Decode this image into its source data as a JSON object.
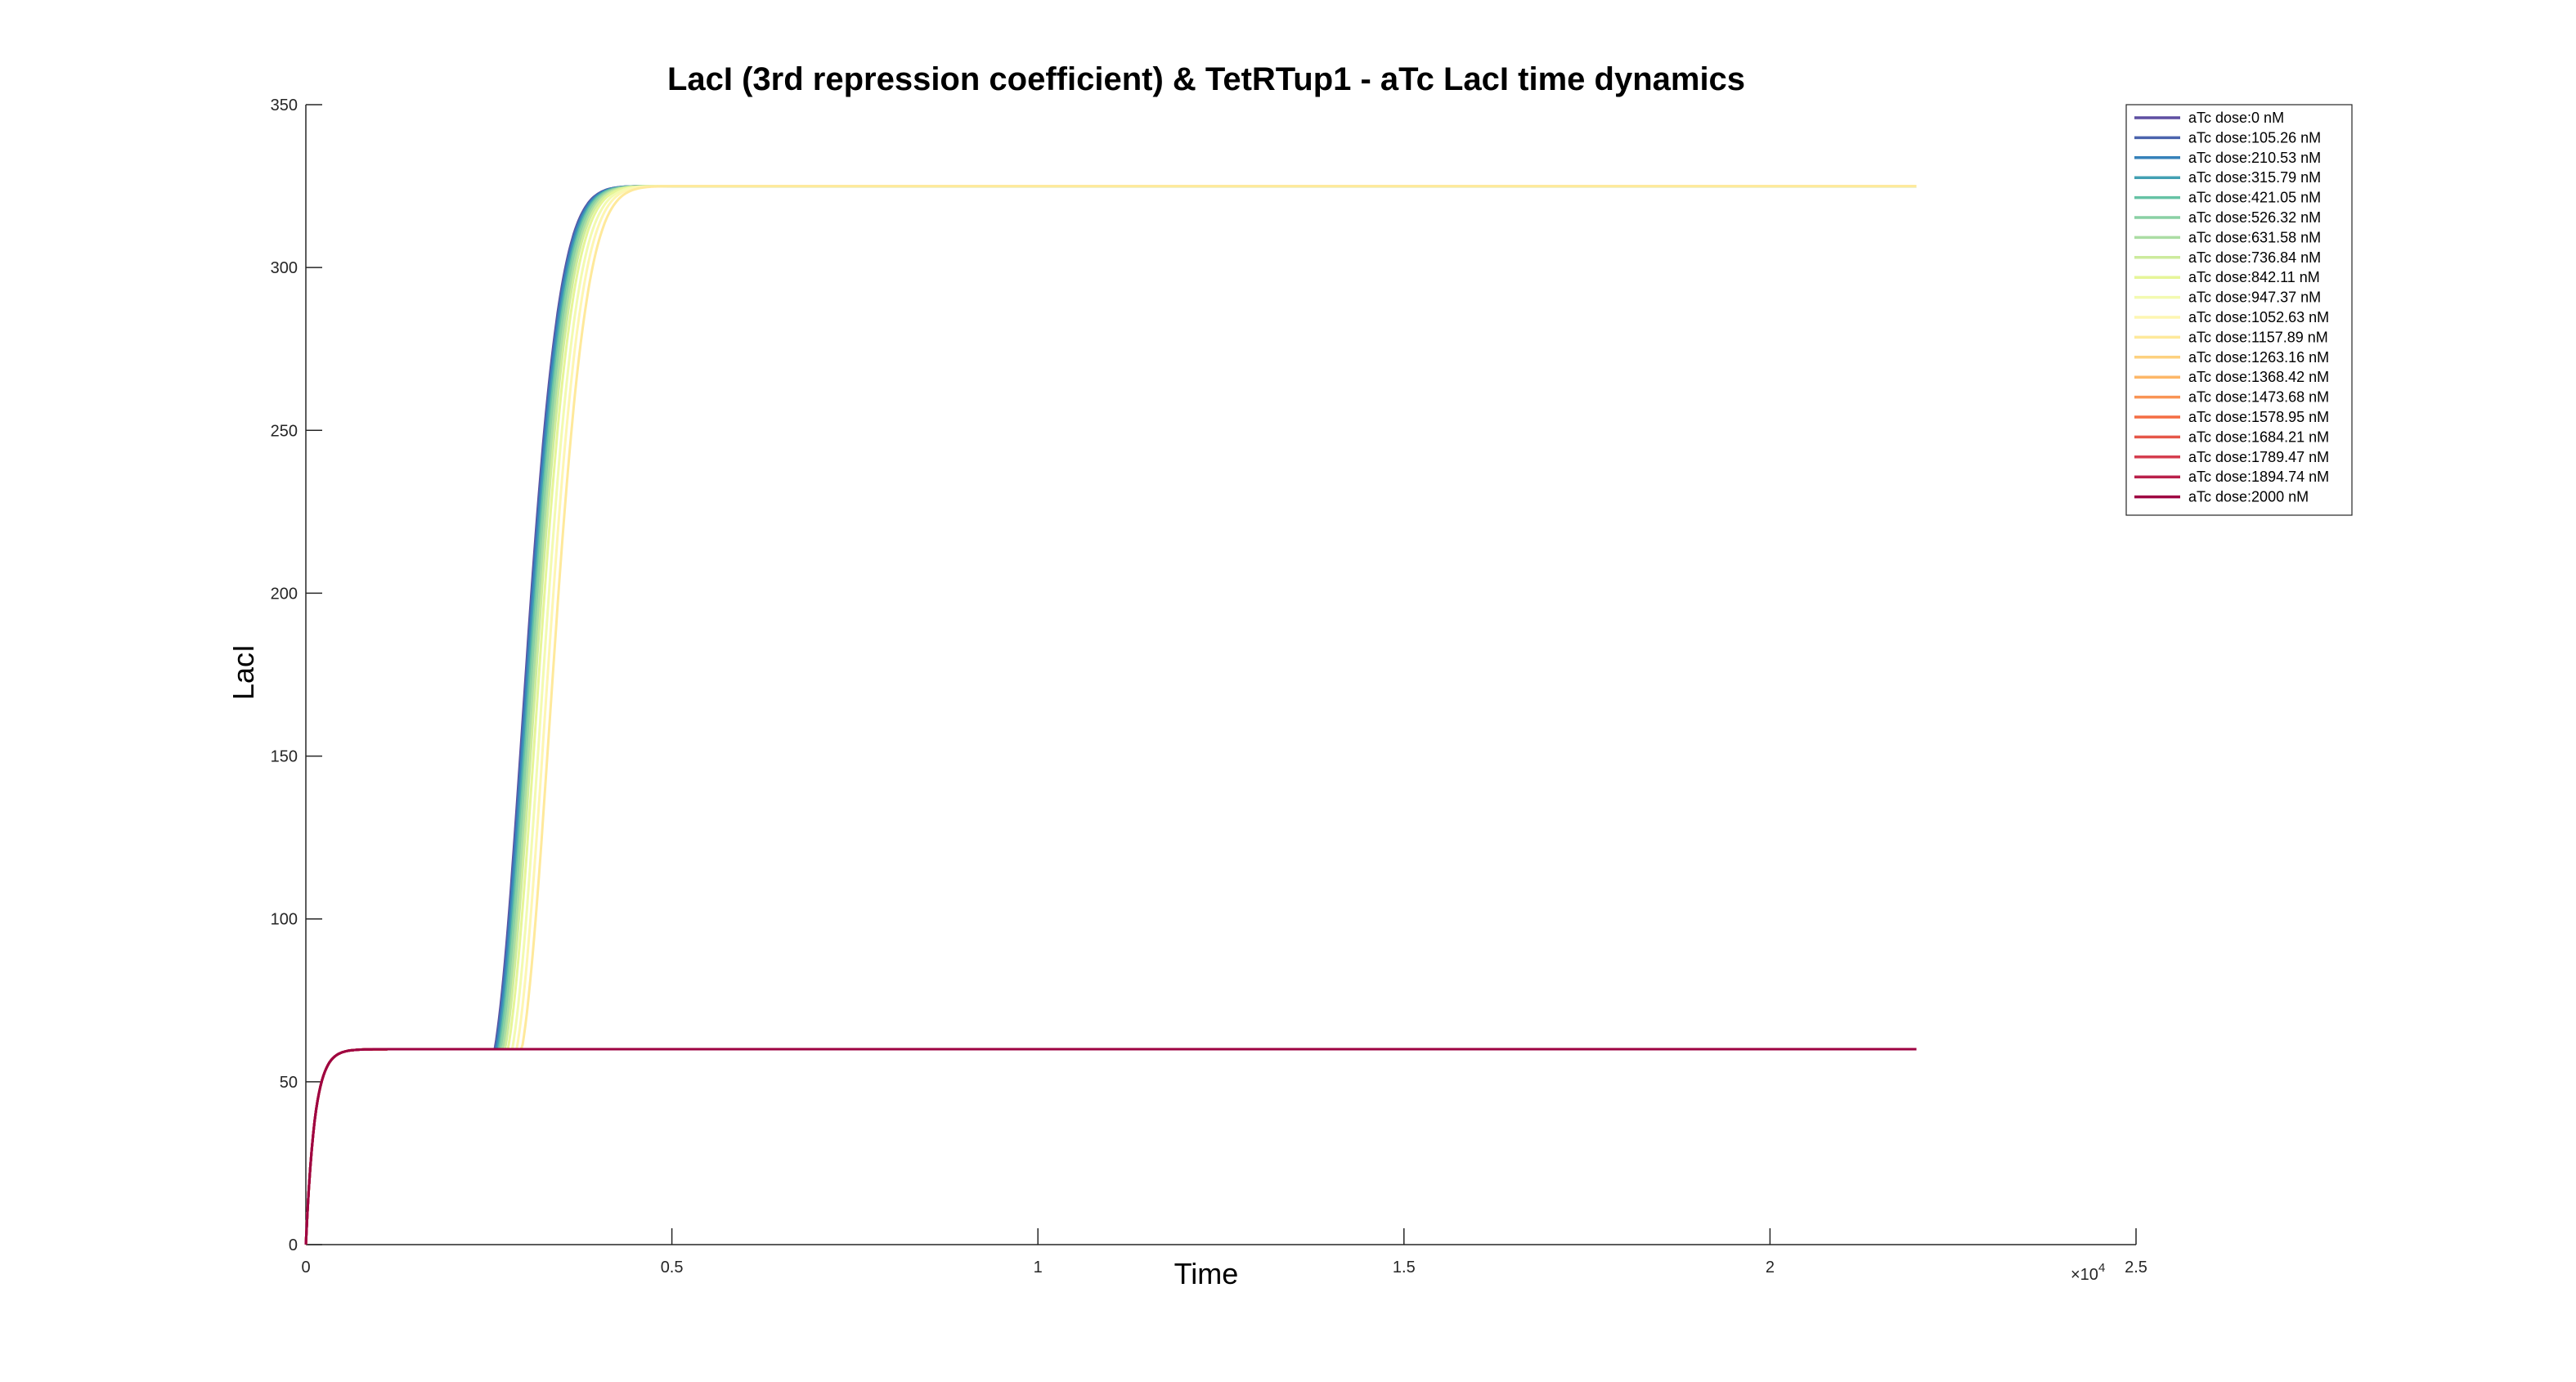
{
  "chart_data": {
    "type": "line",
    "title": "LacI (3rd repression coefficient) & TetRTup1 - aTc LacI time dynamics",
    "xlabel": "Time",
    "ylabel": "LacI",
    "xlim": [
      0,
      25000
    ],
    "ylim": [
      0,
      350
    ],
    "x_tick_labels": [
      "0",
      "0.5",
      "1",
      "1.5",
      "2",
      "2.5"
    ],
    "x_tick_values": [
      0,
      5000,
      10000,
      15000,
      20000,
      25000
    ],
    "x_exponent_label": "×10",
    "x_exponent_power": "4",
    "y_tick_values": [
      0,
      50,
      100,
      150,
      200,
      250,
      300,
      350
    ],
    "y_tick_labels": [
      "0",
      "50",
      "100",
      "150",
      "200",
      "250",
      "300",
      "350"
    ],
    "grid": false,
    "legend_position": "top-right",
    "x_end": 22000,
    "series": [
      {
        "name": "aTc dose:0 nM",
        "color": "#5e4fa2",
        "switches": true,
        "switch_time": 2580,
        "steady_high": 325
      },
      {
        "name": "aTc dose:105.26 nM",
        "color": "#4b64ad",
        "switches": true,
        "switch_time": 2590,
        "steady_high": 325
      },
      {
        "name": "aTc dose:210.53 nM",
        "color": "#3682ba",
        "switches": true,
        "switch_time": 2600,
        "steady_high": 325
      },
      {
        "name": "aTc dose:315.79 nM",
        "color": "#43a0b3",
        "switches": true,
        "switch_time": 2620,
        "steady_high": 325
      },
      {
        "name": "aTc dose:421.05 nM",
        "color": "#66c2a5",
        "switches": true,
        "switch_time": 2640,
        "steady_high": 325
      },
      {
        "name": "aTc dose:526.32 nM",
        "color": "#8ad0a4",
        "switches": true,
        "switch_time": 2660,
        "steady_high": 325
      },
      {
        "name": "aTc dose:631.58 nM",
        "color": "#abdda4",
        "switches": true,
        "switch_time": 2690,
        "steady_high": 325
      },
      {
        "name": "aTc dose:736.84 nM",
        "color": "#cdeb9d",
        "switches": true,
        "switch_time": 2720,
        "steady_high": 325
      },
      {
        "name": "aTc dose:842.11 nM",
        "color": "#e6f598",
        "switches": true,
        "switch_time": 2760,
        "steady_high": 325
      },
      {
        "name": "aTc dose:947.37 nM",
        "color": "#f3fab0",
        "switches": true,
        "switch_time": 2820,
        "steady_high": 325
      },
      {
        "name": "aTc dose:1052.63 nM",
        "color": "#fdf6b2",
        "switches": true,
        "switch_time": 2880,
        "steady_high": 325
      },
      {
        "name": "aTc dose:1157.89 nM",
        "color": "#fee99b",
        "switches": true,
        "switch_time": 2950,
        "steady_high": 325
      },
      {
        "name": "aTc dose:1263.16 nM",
        "color": "#fdd17f",
        "switches": false,
        "steady_low": 60
      },
      {
        "name": "aTc dose:1368.42 nM",
        "color": "#fdb768",
        "switches": false,
        "steady_low": 60
      },
      {
        "name": "aTc dose:1473.68 nM",
        "color": "#f99455",
        "switches": false,
        "steady_low": 60
      },
      {
        "name": "aTc dose:1578.95 nM",
        "color": "#f46d43",
        "switches": false,
        "steady_low": 60
      },
      {
        "name": "aTc dose:1684.21 nM",
        "color": "#e55749",
        "switches": false,
        "steady_low": 60
      },
      {
        "name": "aTc dose:1789.47 nM",
        "color": "#d53e4f",
        "switches": false,
        "steady_low": 60
      },
      {
        "name": "aTc dose:1894.74 nM",
        "color": "#b9204b",
        "switches": false,
        "steady_low": 60
      },
      {
        "name": "aTc dose:2000 nM",
        "color": "#9e0142",
        "switches": false,
        "steady_low": 60
      }
    ]
  }
}
